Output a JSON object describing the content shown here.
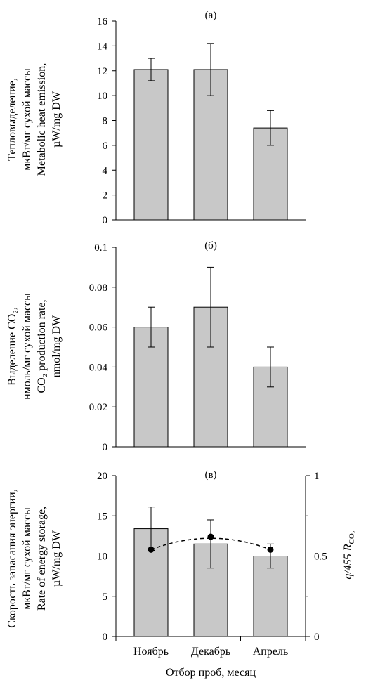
{
  "colors": {
    "bar_fill": "#c8c8c8",
    "axis": "#000000"
  },
  "chart_data": [
    {
      "type": "bar",
      "title": "(а)",
      "categories": [
        "Ноябрь",
        "Декабрь",
        "Апрель"
      ],
      "values": [
        12.1,
        12.1,
        7.4
      ],
      "errors": [
        0.9,
        2.1,
        1.4
      ],
      "ylim": [
        0,
        16
      ],
      "yticks": [
        "0",
        "2",
        "4",
        "6",
        "8",
        "10",
        "12",
        "14",
        "16"
      ],
      "ylabel_lines": [
        "Тепловыделение,",
        "мкВт/мг сухой массы",
        "Metabolic heat emission,",
        "µW/mg DW"
      ]
    },
    {
      "type": "bar",
      "title": "(б)",
      "categories": [
        "Ноябрь",
        "Декабрь",
        "Апрель"
      ],
      "values": [
        0.06,
        0.07,
        0.04
      ],
      "errors": [
        0.01,
        0.02,
        0.01
      ],
      "ylim": [
        0,
        0.1
      ],
      "yticks": [
        "0",
        "0.02",
        "0.04",
        "0.06",
        "0.08",
        "0.1"
      ],
      "ylabel_lines": [
        "Выделение CO₂,",
        "нмоль/мг сухой массы",
        "CO₂ production rate,",
        "nmol/mg DW"
      ]
    },
    {
      "type": "bar",
      "title": "(в)",
      "categories": [
        "Ноябрь",
        "Декабрь",
        "Апрель"
      ],
      "values": [
        13.4,
        11.5,
        10.0
      ],
      "errors": [
        2.7,
        3.0,
        1.5
      ],
      "ylim": [
        0,
        20
      ],
      "yticks": [
        "0",
        "5",
        "10",
        "15",
        "20"
      ],
      "ylabel_lines": [
        "Скорость запасания энергии,",
        "мкВт/мг сухой массы",
        "Rate of energy storage,",
        "µW/mg DW"
      ],
      "secondary": {
        "values": [
          0.54,
          0.62,
          0.54
        ],
        "ylim": [
          0,
          1
        ],
        "yticks": [
          "0",
          "0.5",
          "1"
        ],
        "ylabel": "q/455 R",
        "ylabel_sub": "CO₂"
      },
      "xlabel": "Отбор проб, месяц"
    }
  ]
}
